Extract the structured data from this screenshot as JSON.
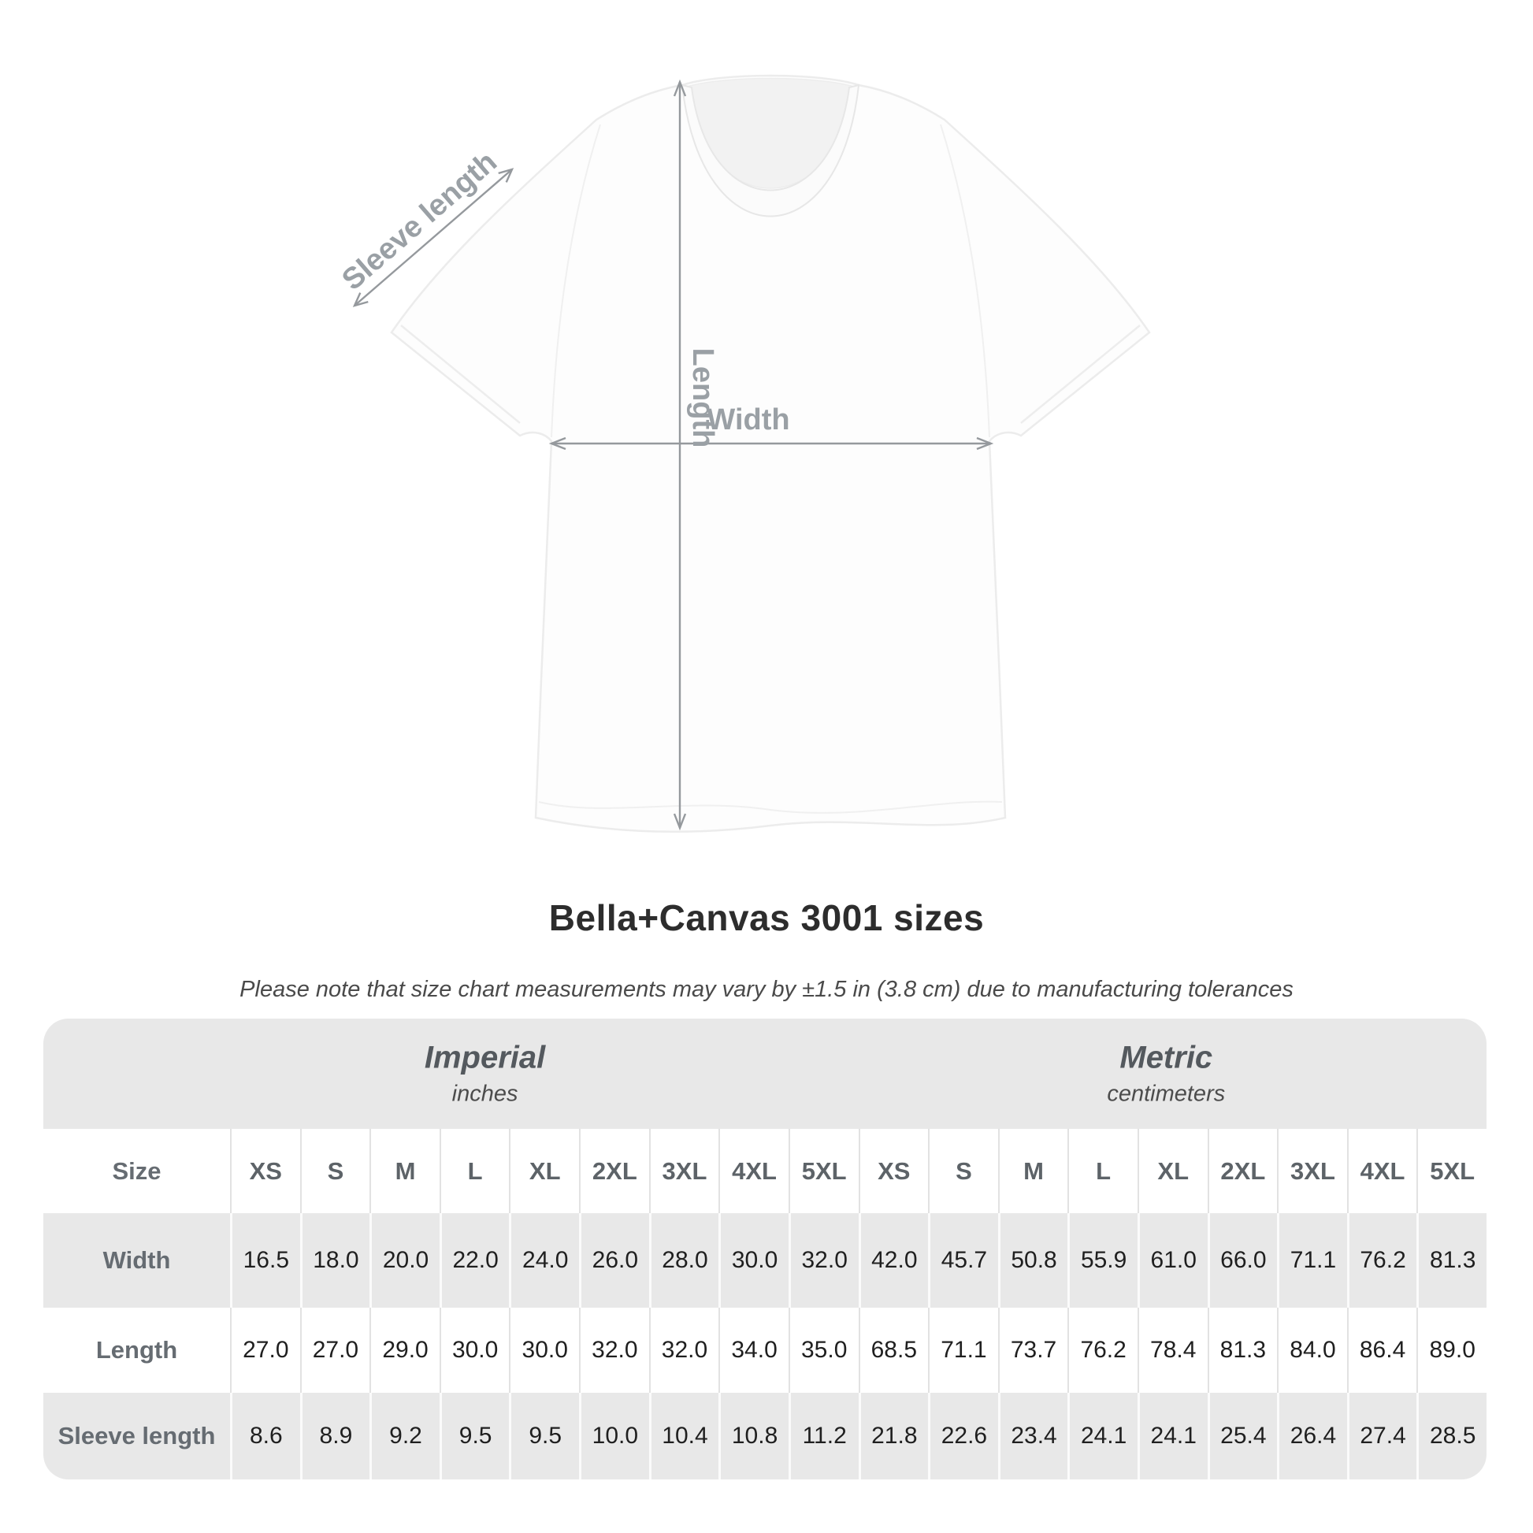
{
  "title": "Bella+Canvas 3001 sizes",
  "subtitle": "Please note that size chart measurements may vary by ±1.5 in (3.8 cm) due to manufacturing tolerances",
  "diagram": {
    "sleeve_label": "Sleeve length",
    "length_label": "Length",
    "width_label": "Width"
  },
  "table": {
    "size_header": "Size",
    "groups": [
      {
        "label": "Imperial",
        "sublabel": "inches"
      },
      {
        "label": "Metric",
        "sublabel": "centimeters"
      }
    ],
    "columns": [
      "XS",
      "S",
      "M",
      "L",
      "XL",
      "2XL",
      "3XL",
      "4XL",
      "5XL",
      "XS",
      "S",
      "M",
      "L",
      "XL",
      "2XL",
      "3XL",
      "4XL",
      "5XL"
    ],
    "rows": [
      {
        "label": "Width",
        "values": [
          "16.5",
          "18.0",
          "20.0",
          "22.0",
          "24.0",
          "26.0",
          "28.0",
          "30.0",
          "32.0",
          "42.0",
          "45.7",
          "50.8",
          "55.9",
          "61.0",
          "66.0",
          "71.1",
          "76.2",
          "81.3"
        ]
      },
      {
        "label": "Length",
        "values": [
          "27.0",
          "27.0",
          "29.0",
          "30.0",
          "30.0",
          "32.0",
          "32.0",
          "34.0",
          "35.0",
          "68.5",
          "71.1",
          "73.7",
          "76.2",
          "78.4",
          "81.3",
          "84.0",
          "86.4",
          "89.0"
        ]
      },
      {
        "label": "Sleeve length",
        "values": [
          "8.6",
          "8.9",
          "9.2",
          "9.5",
          "9.5",
          "10.0",
          "10.4",
          "10.8",
          "11.2",
          "21.8",
          "22.6",
          "23.4",
          "24.1",
          "24.1",
          "25.4",
          "26.4",
          "27.4",
          "28.5"
        ]
      }
    ]
  },
  "chart_data": {
    "type": "table",
    "title": "Bella+Canvas 3001 sizes",
    "note": "Size chart measurements may vary by ±1.5 in (3.8 cm) due to manufacturing tolerances",
    "unit_groups": [
      {
        "name": "Imperial",
        "unit": "inches"
      },
      {
        "name": "Metric",
        "unit": "centimeters"
      }
    ],
    "sizes": [
      "XS",
      "S",
      "M",
      "L",
      "XL",
      "2XL",
      "3XL",
      "4XL",
      "5XL"
    ],
    "measurements": [
      {
        "measurement": "Width",
        "imperial": [
          16.5,
          18.0,
          20.0,
          22.0,
          24.0,
          26.0,
          28.0,
          30.0,
          32.0
        ],
        "metric": [
          42.0,
          45.7,
          50.8,
          55.9,
          61.0,
          66.0,
          71.1,
          76.2,
          81.3
        ]
      },
      {
        "measurement": "Length",
        "imperial": [
          27.0,
          27.0,
          29.0,
          30.0,
          30.0,
          32.0,
          32.0,
          34.0,
          35.0
        ],
        "metric": [
          68.5,
          71.1,
          73.7,
          76.2,
          78.4,
          81.3,
          84.0,
          86.4,
          89.0
        ]
      },
      {
        "measurement": "Sleeve length",
        "imperial": [
          8.6,
          8.9,
          9.2,
          9.5,
          9.5,
          10.0,
          10.4,
          10.8,
          11.2
        ],
        "metric": [
          21.8,
          22.6,
          23.4,
          24.1,
          24.1,
          25.4,
          26.4,
          27.4,
          28.5
        ]
      }
    ]
  },
  "colors": {
    "table_gray": "#e8e8e8",
    "separator_on_white": "#e2e2e2",
    "separator_on_gray": "#fbfbfb",
    "value_text": "#1f1f1f",
    "header_text": "#5d6368",
    "row_label_text": "#666c72",
    "title_text": "#2d2d2d",
    "diagram_gray": "#9aa0a5"
  }
}
